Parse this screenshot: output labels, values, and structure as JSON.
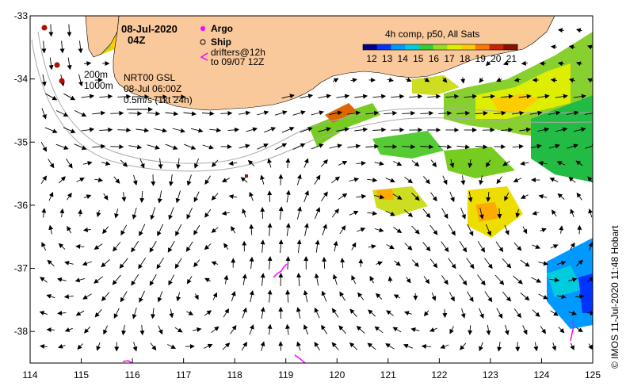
{
  "title": {
    "date": "08-Jul-2020",
    "time": "04Z"
  },
  "colorbar": {
    "title": "4h comp, p50, All Sats",
    "ticks": [
      "12",
      "13",
      "14",
      "15",
      "16",
      "17",
      "18",
      "19",
      "20",
      "21"
    ],
    "colors": [
      "#00008c",
      "#0033ff",
      "#0099ff",
      "#00ccdd",
      "#33cc33",
      "#99dd22",
      "#ddee00",
      "#ffcc00",
      "#ff7700",
      "#cc2200",
      "#881100"
    ]
  },
  "legend": {
    "argo": "Argo",
    "ship": "Ship",
    "drifters_line1": "drifters@12h",
    "drifters_line2": "to 09/07 12Z",
    "isobath_200": "200m",
    "isobath_1000": "1000m",
    "product": "NRT00 GSL",
    "product_time": "08-Jul 06:00Z",
    "speed_scale": "0.5m/s (1kt 24h)"
  },
  "credit": "© IMOS 11-Jul-2020 11:48 Hobart",
  "axes": {
    "x_ticks": [
      "114",
      "115",
      "116",
      "117",
      "118",
      "119",
      "120",
      "121",
      "122",
      "123",
      "124",
      "125"
    ],
    "y_ticks": [
      "-33",
      "-34",
      "-35",
      "-36",
      "-37",
      "-38"
    ],
    "x_range": [
      114,
      125
    ],
    "y_range": [
      -38.5,
      -33
    ]
  },
  "colors": {
    "land": "#f9c89b",
    "argo": "#ff00ff",
    "drifter": "#ff00ff",
    "ship_mark": "#aa1100"
  }
}
